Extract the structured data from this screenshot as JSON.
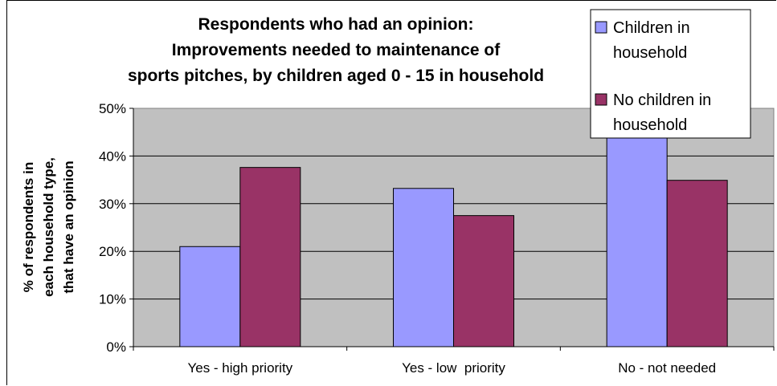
{
  "chart_data": {
    "type": "bar",
    "title_lines": [
      "Respondents who had an opinion:",
      "Improvements needed to maintenance of",
      "sports pitches, by children aged 0 - 15 in household"
    ],
    "ylabel_lines": [
      "% of respondents in",
      "each household type,",
      "that have an opinion"
    ],
    "xlabel": "",
    "categories": [
      "Yes - high priority",
      "Yes - low  priority",
      "No - not needed"
    ],
    "series": [
      {
        "name_lines": [
          "Children in",
          "household"
        ],
        "values": [
          21,
          33.2,
          45.2
        ],
        "color": "#9999ff"
      },
      {
        "name_lines": [
          "No children in",
          "household"
        ],
        "values": [
          37.6,
          27.5,
          34.9
        ],
        "color": "#993366"
      }
    ],
    "ylim": [
      0,
      50
    ],
    "yticks": [
      0,
      10,
      20,
      30,
      40,
      50
    ],
    "ytick_labels": [
      "0%",
      "10%",
      "20%",
      "30%",
      "40%",
      "50%"
    ],
    "plot_background": "#c0c0c0",
    "grid": true,
    "legend_position": "top-right"
  }
}
